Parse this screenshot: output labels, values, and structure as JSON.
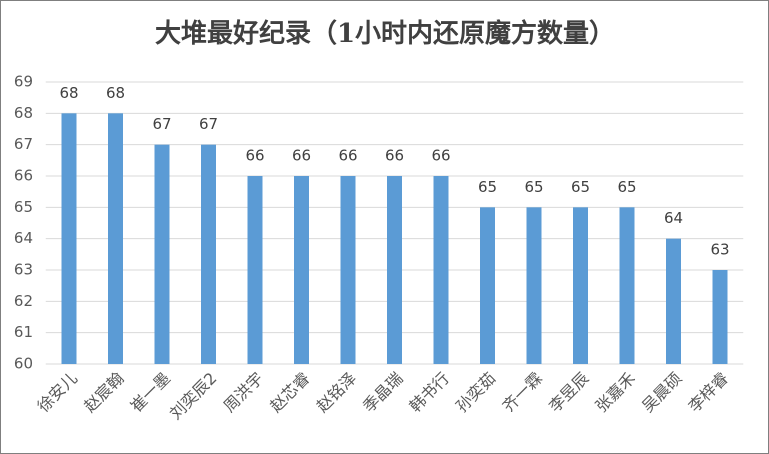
{
  "chart_data": {
    "type": "bar",
    "title": "大堆最好纪录（1小时内还原魔方数量）",
    "categories": [
      "徐安儿",
      "赵宸翰",
      "崔一墨",
      "刘奕辰2",
      "周洪宇",
      "赵芯睿",
      "赵铭泽",
      "季晶瑞",
      "韩书行",
      "孙奕茹",
      "齐一霖",
      "李昱辰",
      "张嘉禾",
      "吴晨硕",
      "李梓睿"
    ],
    "values": [
      68,
      68,
      67,
      67,
      66,
      66,
      66,
      66,
      66,
      65,
      65,
      65,
      65,
      64,
      63
    ],
    "color": "#5b9bd5",
    "ylim": [
      60,
      69
    ],
    "yticks": [
      60,
      61,
      62,
      63,
      64,
      65,
      66,
      67,
      68,
      69
    ],
    "grid": true
  }
}
